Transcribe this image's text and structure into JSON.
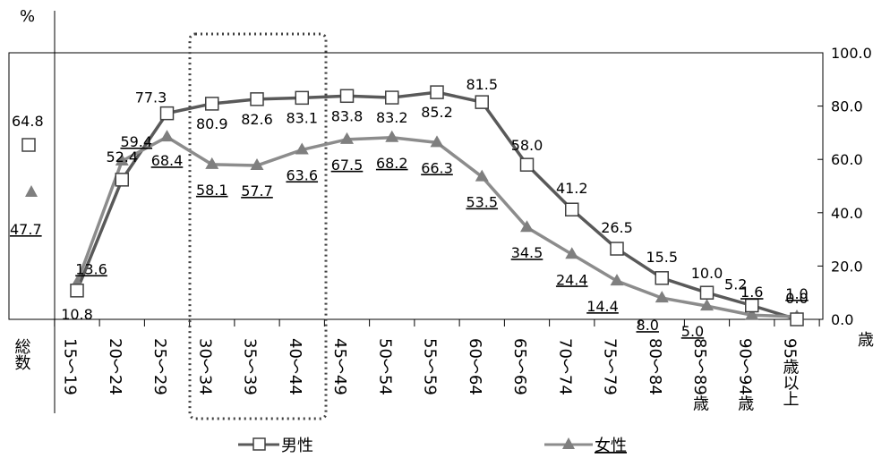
{
  "chart_data": {
    "type": "line",
    "y_unit_label": "%",
    "x_unit_label": "歳",
    "categories": [
      "15～19",
      "20～24",
      "25～29",
      "30～34",
      "35～39",
      "40～44",
      "45～49",
      "50～54",
      "55～59",
      "60～64",
      "65～69",
      "70～74",
      "75～79",
      "80～84",
      "85～89歳",
      "90～94歳",
      "95歳以上"
    ],
    "total_category": "総数",
    "ylim": [
      0,
      100
    ],
    "yticks": [
      "0.0",
      "20.0",
      "40.0",
      "60.0",
      "80.0",
      "100.0"
    ],
    "legend_position": "bottom",
    "series": [
      {
        "name": "男性",
        "marker": "square-open",
        "color": "#595959",
        "total": 64.8,
        "total_label": "64.8",
        "values": [
          10.8,
          52.4,
          77.3,
          80.9,
          82.6,
          83.1,
          83.8,
          83.2,
          85.2,
          81.5,
          58.0,
          41.2,
          26.5,
          15.5,
          10.0,
          5.2,
          0.0
        ],
        "labels": [
          "10.8",
          "52.4",
          "77.3",
          "80.9",
          "82.6",
          "83.1",
          "83.8",
          "83.2",
          "85.2",
          "81.5",
          "58.0",
          "41.2",
          "26.5",
          "15.5",
          "10.0",
          "5.2",
          "0.0"
        ]
      },
      {
        "name": "女性",
        "marker": "triangle-filled",
        "color": "#8c8c8c",
        "total": 47.7,
        "total_label": "47.7",
        "values": [
          13.6,
          59.4,
          68.4,
          58.1,
          57.7,
          63.6,
          67.5,
          68.2,
          66.3,
          53.5,
          34.5,
          24.4,
          14.4,
          8.0,
          5.0,
          1.6,
          1.0
        ],
        "labels": [
          "13.6",
          "59.4",
          "68.4",
          "58.1",
          "57.7",
          "63.6",
          "67.5",
          "68.2",
          "66.3",
          "53.5",
          "34.5",
          "24.4",
          "14.4",
          "8.0",
          "5.0",
          "1.6",
          "1.0"
        ]
      }
    ],
    "highlight_categories": [
      "30～34",
      "35～39",
      "40～44"
    ]
  }
}
